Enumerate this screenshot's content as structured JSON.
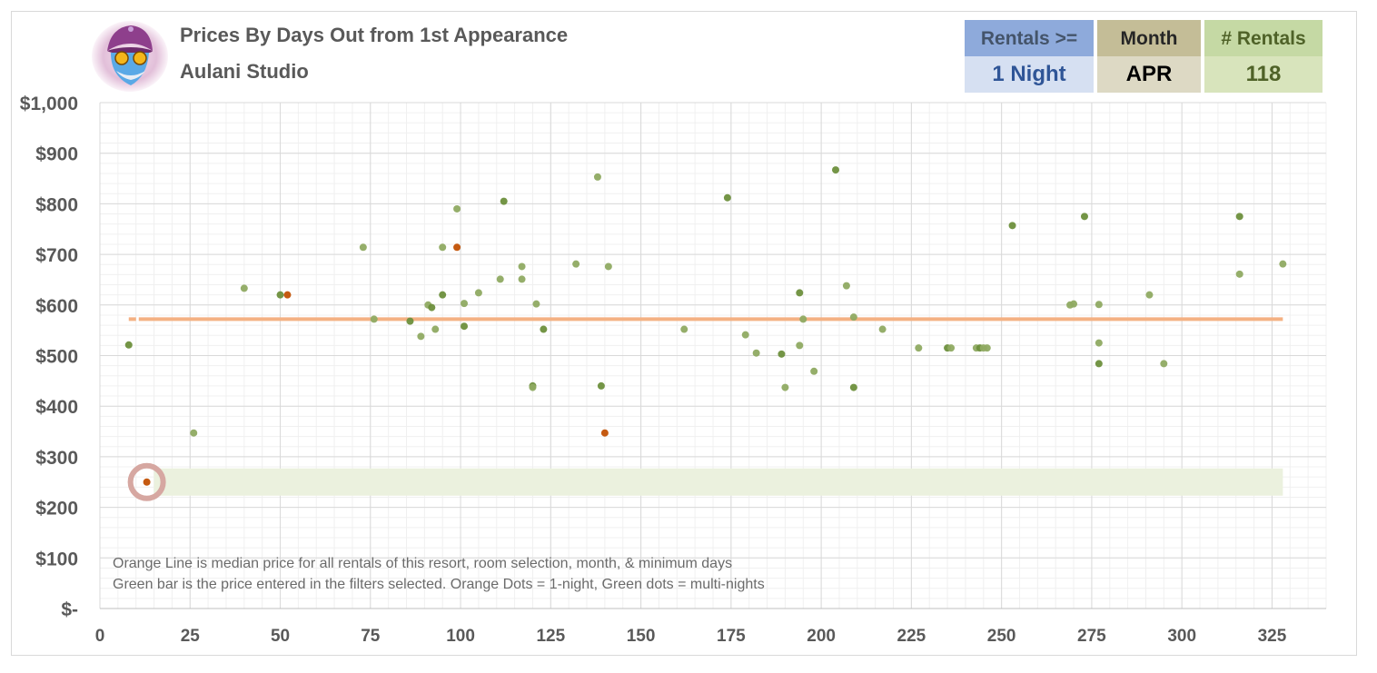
{
  "header": {
    "title": "Prices By Days Out from 1st Appearance",
    "subtitle": "Aulani Studio"
  },
  "filters": {
    "rentals_label": "Rentals >=",
    "rentals_value": "1 Night",
    "month_label": "Month",
    "month_value": "APR",
    "count_label": "# Rentals",
    "count_value": "118"
  },
  "notes": {
    "line1": "Orange Line is median price for all rentals of this resort, room selection, month, & minimum days",
    "line2": "Green bar is the price entered in the filters selected. Orange Dots = 1-night, Green dots = multi-nights"
  },
  "colors": {
    "median_line": "#f4b183",
    "green_bar": "#ebf1de",
    "dot_green_dark": "#6d8f3c",
    "dot_green_light": "#8faa62",
    "dot_orange": "#c55a11",
    "target_ring": "#d6a7a1"
  },
  "chart_data": {
    "type": "scatter",
    "title": "Prices By Days Out from 1st Appearance",
    "xlim": [
      0,
      340
    ],
    "ylim": [
      0,
      1000
    ],
    "x_ticks": [
      0,
      25,
      50,
      75,
      100,
      125,
      150,
      175,
      200,
      225,
      250,
      275,
      300,
      325
    ],
    "x_tick_labels": [
      "0",
      "25",
      "50",
      "75",
      "100",
      "125",
      "150",
      "175",
      "200",
      "225",
      "250",
      "275",
      "300",
      "325"
    ],
    "y_ticks": [
      0,
      100,
      200,
      300,
      400,
      500,
      600,
      700,
      800,
      900,
      1000
    ],
    "y_tick_labels": [
      "$-",
      "$100",
      "$200",
      "$300",
      "$400",
      "$500",
      "$600",
      "$700",
      "$800",
      "$900",
      "$1,000"
    ],
    "grid": true,
    "median_price": 572,
    "median_x_range": [
      8,
      328
    ],
    "filter_price": 250,
    "filter_bar_x_range": [
      15,
      328
    ],
    "highlight_point": {
      "x": 13,
      "y": 250
    },
    "series": [
      {
        "name": "1-night",
        "color": "#c55a11",
        "points": [
          [
            52,
            620
          ],
          [
            99,
            714
          ],
          [
            140,
            347
          ],
          [
            13,
            250
          ]
        ]
      },
      {
        "name": "multi-nights",
        "color": "#7a9a48",
        "points": [
          [
            8,
            521
          ],
          [
            26,
            347
          ],
          [
            40,
            633
          ],
          [
            50,
            620
          ],
          [
            73,
            714
          ],
          [
            76,
            572
          ],
          [
            86,
            568
          ],
          [
            89,
            538
          ],
          [
            91,
            600
          ],
          [
            92,
            595
          ],
          [
            93,
            552
          ],
          [
            95,
            714
          ],
          [
            95,
            620
          ],
          [
            99,
            790
          ],
          [
            101,
            603
          ],
          [
            101,
            558
          ],
          [
            105,
            624
          ],
          [
            111,
            651
          ],
          [
            112,
            805
          ],
          [
            117,
            676
          ],
          [
            117,
            651
          ],
          [
            120,
            440
          ],
          [
            120,
            437
          ],
          [
            121,
            602
          ],
          [
            123,
            552
          ],
          [
            132,
            681
          ],
          [
            138,
            853
          ],
          [
            139,
            440
          ],
          [
            141,
            676
          ],
          [
            162,
            552
          ],
          [
            174,
            812
          ],
          [
            179,
            541
          ],
          [
            182,
            505
          ],
          [
            189,
            503
          ],
          [
            190,
            437
          ],
          [
            194,
            520
          ],
          [
            194,
            624
          ],
          [
            195,
            572
          ],
          [
            198,
            469
          ],
          [
            204,
            867
          ],
          [
            207,
            638
          ],
          [
            209,
            576
          ],
          [
            209,
            437
          ],
          [
            217,
            552
          ],
          [
            227,
            515
          ],
          [
            235,
            515
          ],
          [
            236,
            515
          ],
          [
            243,
            515
          ],
          [
            244,
            515
          ],
          [
            245,
            515
          ],
          [
            246,
            515
          ],
          [
            253,
            757
          ],
          [
            269,
            600
          ],
          [
            270,
            602
          ],
          [
            273,
            775
          ],
          [
            277,
            601
          ],
          [
            277,
            525
          ],
          [
            277,
            484
          ],
          [
            291,
            620
          ],
          [
            295,
            484
          ],
          [
            316,
            775
          ],
          [
            316,
            661
          ],
          [
            328,
            681
          ]
        ]
      }
    ]
  }
}
